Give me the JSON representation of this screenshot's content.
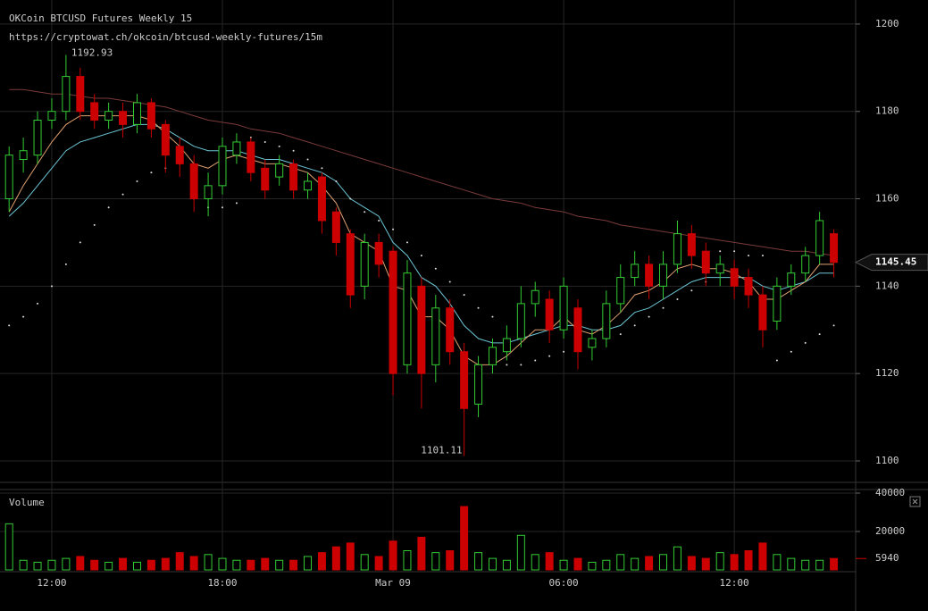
{
  "chart_data": [
    {
      "type": "candlestick",
      "title": "OKCoin BTCUSD Futures Weekly 15",
      "subtitle": "https://cryptowat.ch/okcoin/btcusd-weekly-futures/15m",
      "categories": [
        null,
        null,
        null,
        "12:00",
        null,
        null,
        null,
        null,
        null,
        null,
        null,
        null,
        null,
        null,
        null,
        "18:00",
        null,
        null,
        null,
        null,
        null,
        null,
        null,
        null,
        null,
        null,
        null,
        "Mar 09",
        null,
        null,
        null,
        null,
        null,
        null,
        null,
        null,
        null,
        null,
        null,
        "06:00",
        null,
        null,
        null,
        null,
        null,
        null,
        null,
        null,
        null,
        null,
        null,
        "12:00",
        null,
        null,
        null,
        null,
        null,
        null,
        null
      ],
      "open": [
        1160,
        1169,
        1170,
        1178,
        1180,
        1188,
        1182,
        1178,
        1180,
        1177,
        1182,
        1177,
        1172,
        1168,
        1160,
        1163,
        1170,
        1173,
        1167,
        1165,
        1168,
        1162,
        1165,
        1157,
        1152,
        1140,
        1150,
        1148,
        1122,
        1140,
        1122,
        1135,
        1125,
        1113,
        1122,
        1125,
        1128,
        1136,
        1137,
        1130,
        1135,
        1126,
        1128,
        1136,
        1142,
        1145,
        1140,
        1145,
        1152,
        1148,
        1143,
        1144,
        1142,
        1138,
        1132,
        1140,
        1143,
        1147,
        1152
      ],
      "high": [
        1172,
        1174,
        1180,
        1183,
        1192.93,
        1190,
        1184,
        1182,
        1182,
        1184,
        1183,
        1178,
        1174,
        1170,
        1166,
        1174,
        1175,
        1174,
        1169,
        1170,
        1169,
        1166,
        1166,
        1158,
        1153,
        1152,
        1152,
        1149,
        1146,
        1142,
        1138,
        1137,
        1127,
        1124,
        1128,
        1131,
        1140,
        1141,
        1139,
        1142,
        1137,
        1130,
        1139,
        1145,
        1148,
        1147,
        1148,
        1155,
        1154,
        1150,
        1147,
        1146,
        1144,
        1140,
        1142,
        1145,
        1149,
        1157,
        1153
      ],
      "low": [
        1157,
        1166,
        1168,
        1176,
        1178,
        1178,
        1176,
        1176,
        1174,
        1175,
        1174,
        1166,
        1165,
        1157,
        1156,
        1161,
        1168,
        1164,
        1160,
        1163,
        1160,
        1160,
        1152,
        1147,
        1135,
        1137,
        1142,
        1115,
        1120,
        1112,
        1118,
        1122,
        1101.11,
        1110,
        1120,
        1123,
        1126,
        1133,
        1127,
        1128,
        1121,
        1123,
        1126,
        1134,
        1140,
        1137,
        1137,
        1143,
        1144,
        1140,
        1140,
        1137,
        1135,
        1126,
        1130,
        1138,
        1141,
        1145,
        1142
      ],
      "close": [
        1170,
        1171,
        1178,
        1180,
        1188,
        1180,
        1178,
        1180,
        1177,
        1182,
        1176,
        1170,
        1168,
        1160,
        1163,
        1172,
        1173,
        1166,
        1162,
        1168,
        1162,
        1164,
        1155,
        1150,
        1138,
        1150,
        1145,
        1120,
        1143,
        1120,
        1135,
        1125,
        1112,
        1122,
        1126,
        1128,
        1136,
        1139,
        1130,
        1140,
        1125,
        1128,
        1136,
        1142,
        1145,
        1140,
        1145,
        1152,
        1147,
        1143,
        1145,
        1140,
        1138,
        1130,
        1140,
        1143,
        1147,
        1155,
        1145.45
      ],
      "up_color": "#33cc33",
      "down_color": "#cc0000",
      "overlays": [
        {
          "type": "line",
          "color": "#7a3a3a",
          "values": [
            1185,
            1185,
            1184.5,
            1184,
            1184,
            1183.5,
            1183,
            1183,
            1182.5,
            1182,
            1181.5,
            1181,
            1180,
            1179,
            1178,
            1177.5,
            1177,
            1176,
            1175.5,
            1175,
            1174,
            1173,
            1172,
            1171,
            1170,
            1169,
            1168,
            1167,
            1166,
            1165,
            1164,
            1163,
            1162,
            1161,
            1160,
            1159.5,
            1159,
            1158,
            1157.5,
            1157,
            1156,
            1155.5,
            1155,
            1154,
            1153.5,
            1153,
            1152.5,
            1152,
            1151.5,
            1151,
            1150.5,
            1150,
            1149.5,
            1149,
            1148.5,
            1148,
            1148,
            1147.5,
            1147
          ]
        },
        {
          "type": "line",
          "color": "#6cc6d6",
          "values": [
            1156,
            1159,
            1163,
            1167,
            1171,
            1173,
            1174,
            1175,
            1176,
            1177,
            1177,
            1176,
            1174,
            1172,
            1171,
            1171,
            1171,
            1170,
            1169,
            1169,
            1168,
            1167,
            1166,
            1164,
            1160,
            1158,
            1156,
            1150,
            1147,
            1142,
            1140,
            1136,
            1131,
            1128,
            1127,
            1127,
            1128,
            1129,
            1130,
            1131,
            1131,
            1130,
            1130,
            1131,
            1134,
            1135,
            1137,
            1139,
            1141,
            1142,
            1142,
            1142,
            1142,
            1140,
            1139,
            1140,
            1141,
            1143,
            1143
          ]
        },
        {
          "type": "line",
          "color": "#e0a070",
          "values": [
            1157,
            1163,
            1168,
            1173,
            1177,
            1179,
            1179,
            1179,
            1179,
            1179,
            1178,
            1175,
            1172,
            1168,
            1167,
            1169,
            1170,
            1169,
            1168,
            1168,
            1167,
            1166,
            1163,
            1159,
            1152,
            1150,
            1148,
            1140,
            1139,
            1133,
            1133,
            1130,
            1124,
            1122,
            1122,
            1124,
            1127,
            1130,
            1130,
            1133,
            1130,
            1129,
            1131,
            1134,
            1138,
            1139,
            1141,
            1144,
            1145,
            1144,
            1144,
            1143,
            1141,
            1137,
            1137,
            1139,
            1141,
            1145,
            1145
          ]
        },
        {
          "type": "dots",
          "color": "#dddddd",
          "values": [
            1131,
            1133,
            1136,
            1140,
            1145,
            1150,
            1154,
            1158,
            1161,
            1164,
            1166,
            1167,
            1168,
            1160,
            1158,
            1158,
            1159,
            1174,
            1173,
            1172,
            1171,
            1169,
            1167,
            1164,
            1160,
            1157,
            1155,
            1153,
            1150,
            1147,
            1144,
            1141,
            1138,
            1135,
            1133,
            1122,
            1122,
            1123,
            1124,
            1125,
            1126,
            1127,
            1128,
            1129,
            1131,
            1133,
            1135,
            1137,
            1139,
            1141,
            1148,
            1148,
            1147,
            1147,
            1123,
            1125,
            1127,
            1129,
            1131
          ]
        }
      ],
      "ylim": [
        1095.7,
        1205.5
      ],
      "yticks": [
        1100,
        1120,
        1140,
        1160,
        1180,
        1200
      ],
      "grid": true
    },
    {
      "type": "bar",
      "title": "Volume",
      "values": [
        24000,
        5000,
        4000,
        5000,
        6000,
        7000,
        5000,
        4000,
        6000,
        4000,
        5000,
        6000,
        9000,
        7000,
        8000,
        6000,
        5000,
        5000,
        6000,
        5000,
        5000,
        7000,
        9000,
        12000,
        14000,
        8000,
        7000,
        15000,
        10000,
        17000,
        9000,
        10000,
        33000,
        9000,
        6000,
        5000,
        18000,
        8000,
        9000,
        5000,
        6000,
        4000,
        5000,
        8000,
        6000,
        7000,
        8000,
        12000,
        7000,
        6000,
        9000,
        8000,
        10000,
        14000,
        8000,
        6000,
        5000,
        5000,
        5940
      ],
      "ylim": [
        0,
        41860
      ],
      "yticks": [
        20000,
        40000
      ],
      "grid": true
    }
  ]
}
